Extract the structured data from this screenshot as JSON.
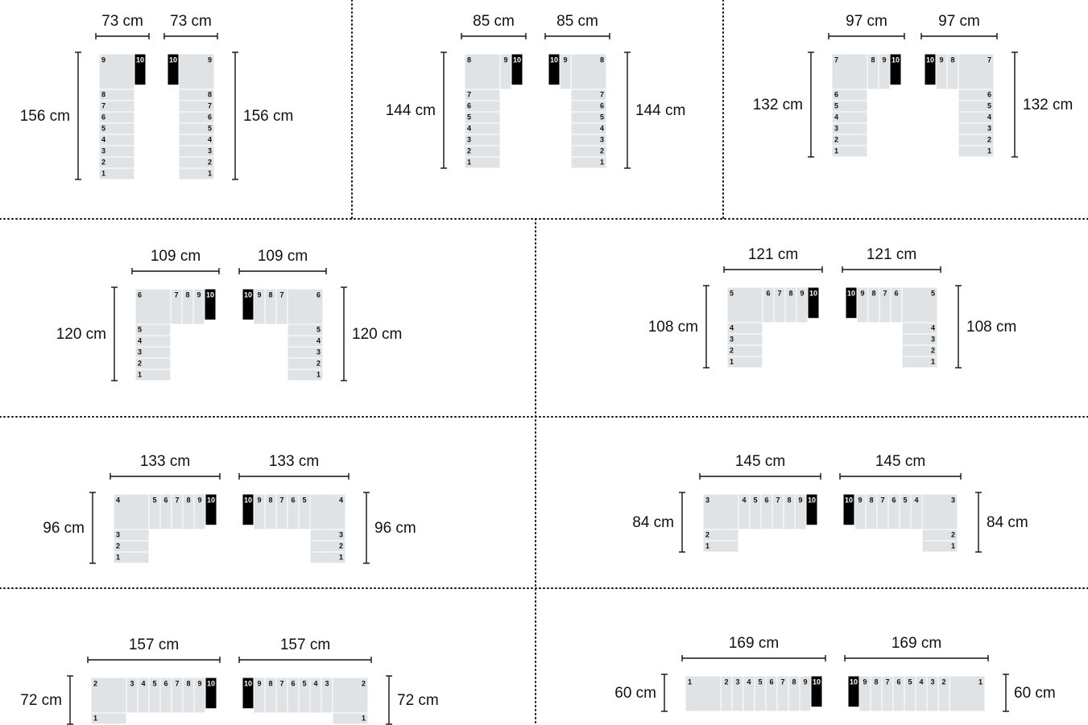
{
  "steps": [
    "1",
    "2",
    "3",
    "4",
    "5",
    "6",
    "7",
    "8",
    "9",
    "10"
  ],
  "panels": [
    {
      "width": "73 cm",
      "height": "156 cm"
    },
    {
      "width": "85 cm",
      "height": "144 cm"
    },
    {
      "width": "97 cm",
      "height": "132 cm"
    },
    {
      "width": "109 cm",
      "height": "120 cm"
    },
    {
      "width": "121 cm",
      "height": "108 cm"
    },
    {
      "width": "133 cm",
      "height": "96 cm"
    },
    {
      "width": "145 cm",
      "height": "84 cm"
    },
    {
      "width": "157 cm",
      "height": "72 cm"
    },
    {
      "width": "169 cm",
      "height": "60 cm"
    }
  ]
}
